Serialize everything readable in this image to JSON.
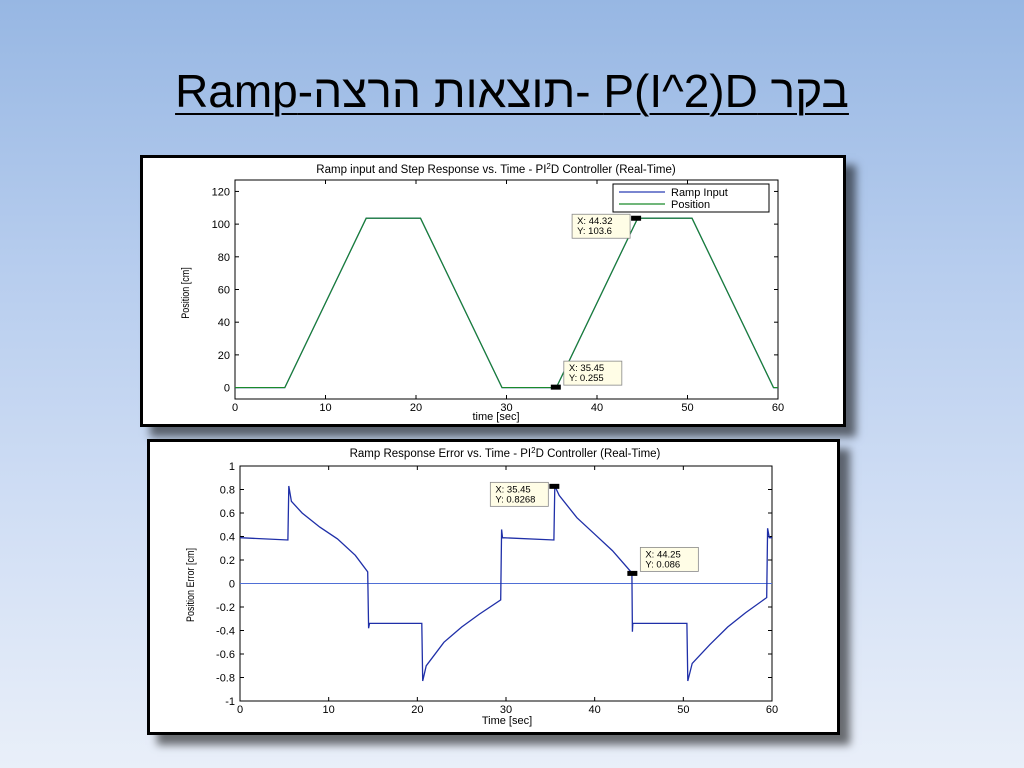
{
  "slide": {
    "title": "בקר P(I^2)D -תוצאות הרצה-Ramp"
  },
  "colors": {
    "ramp_input": "#2b3fb5",
    "position": "#1a8a2a",
    "error": "#1f2fa8",
    "zero_line": "#4f6fd6"
  },
  "chart_data": [
    {
      "type": "line",
      "title_parts": [
        "Ramp input and Step Response vs. Time - PI",
        "2",
        "D Controller (Real-Time)"
      ],
      "xlabel": "time [sec]",
      "ylabel": "Position [cm]",
      "xlim": [
        0,
        60
      ],
      "ylim": [
        -7,
        127
      ],
      "xticks": [
        0,
        10,
        20,
        30,
        40,
        50,
        60
      ],
      "yticks": [
        0,
        20,
        40,
        60,
        80,
        100,
        120
      ],
      "grid": false,
      "legend_position": "top-right",
      "series": [
        {
          "name": "Ramp Input",
          "x": [
            0,
            5.5,
            14.5,
            20.5,
            29.5,
            35.5,
            44.5,
            50.5,
            59.5,
            60
          ],
          "y": [
            0,
            0,
            103.6,
            103.6,
            0,
            0,
            103.6,
            103.6,
            0,
            0
          ]
        },
        {
          "name": "Position",
          "x": [
            0,
            5.5,
            14.5,
            20.5,
            29.5,
            35.5,
            44.5,
            50.5,
            59.5,
            60
          ],
          "y": [
            0,
            0,
            103.6,
            103.6,
            0,
            0,
            103.6,
            103.6,
            0,
            0
          ]
        }
      ],
      "datatips": [
        {
          "x": 44.32,
          "y": 103.6,
          "line1": "X: 44.32",
          "line2": "Y: 103.6",
          "box_side": "left"
        },
        {
          "x": 35.45,
          "y": 0.255,
          "line1": "X: 35.45",
          "line2": "Y: 0.255",
          "box_side": "right"
        }
      ]
    },
    {
      "type": "line",
      "title_parts": [
        "Ramp Response Error vs. Time - PI",
        "2",
        "D Controller (Real-Time)"
      ],
      "xlabel": "Time [sec]",
      "ylabel": "Position Error [cm]",
      "xlim": [
        0,
        60
      ],
      "ylim": [
        -1,
        1
      ],
      "xticks": [
        0,
        10,
        20,
        30,
        40,
        50,
        60
      ],
      "yticks": [
        -1,
        -0.8,
        -0.6,
        -0.4,
        -0.2,
        0,
        0.2,
        0.4,
        0.6,
        0.8,
        1
      ],
      "ytick_labels": [
        "-1",
        "-0.8",
        "-0.6",
        "-0.4",
        "-0.2",
        "0",
        "0.2",
        "0.4",
        "0.6",
        "0.8",
        "1"
      ],
      "grid": false,
      "series": [
        {
          "name": "",
          "x": [
            0,
            5.4,
            5.5,
            5.8,
            7,
            9,
            11,
            13,
            14.4,
            14.5,
            14.6,
            20.5,
            20.6,
            21,
            23,
            25,
            27,
            29.4,
            29.5,
            29.6,
            35.4,
            35.5,
            36,
            38,
            40,
            42,
            44.2,
            44.25,
            44.3,
            50.4,
            50.5,
            51,
            53,
            55,
            57,
            59.4,
            59.5,
            59.7,
            60
          ],
          "y": [
            0.39,
            0.37,
            0.83,
            0.7,
            0.6,
            0.48,
            0.38,
            0.24,
            0.1,
            -0.38,
            -0.34,
            -0.34,
            -0.83,
            -0.7,
            -0.5,
            -0.37,
            -0.26,
            -0.14,
            0.46,
            0.39,
            0.37,
            0.83,
            0.75,
            0.56,
            0.42,
            0.28,
            0.09,
            -0.41,
            -0.34,
            -0.34,
            -0.83,
            -0.68,
            -0.52,
            -0.37,
            -0.25,
            -0.12,
            0.47,
            0.39,
            0.39
          ]
        }
      ],
      "reference_line_y": 0,
      "datatips": [
        {
          "x": 35.45,
          "y": 0.8268,
          "line1": "X: 35.45",
          "line2": "Y: 0.8268",
          "box_side": "left"
        },
        {
          "x": 44.25,
          "y": 0.086,
          "line1": "X: 44.25",
          "line2": "Y: 0.086",
          "box_side": "right"
        }
      ]
    }
  ]
}
